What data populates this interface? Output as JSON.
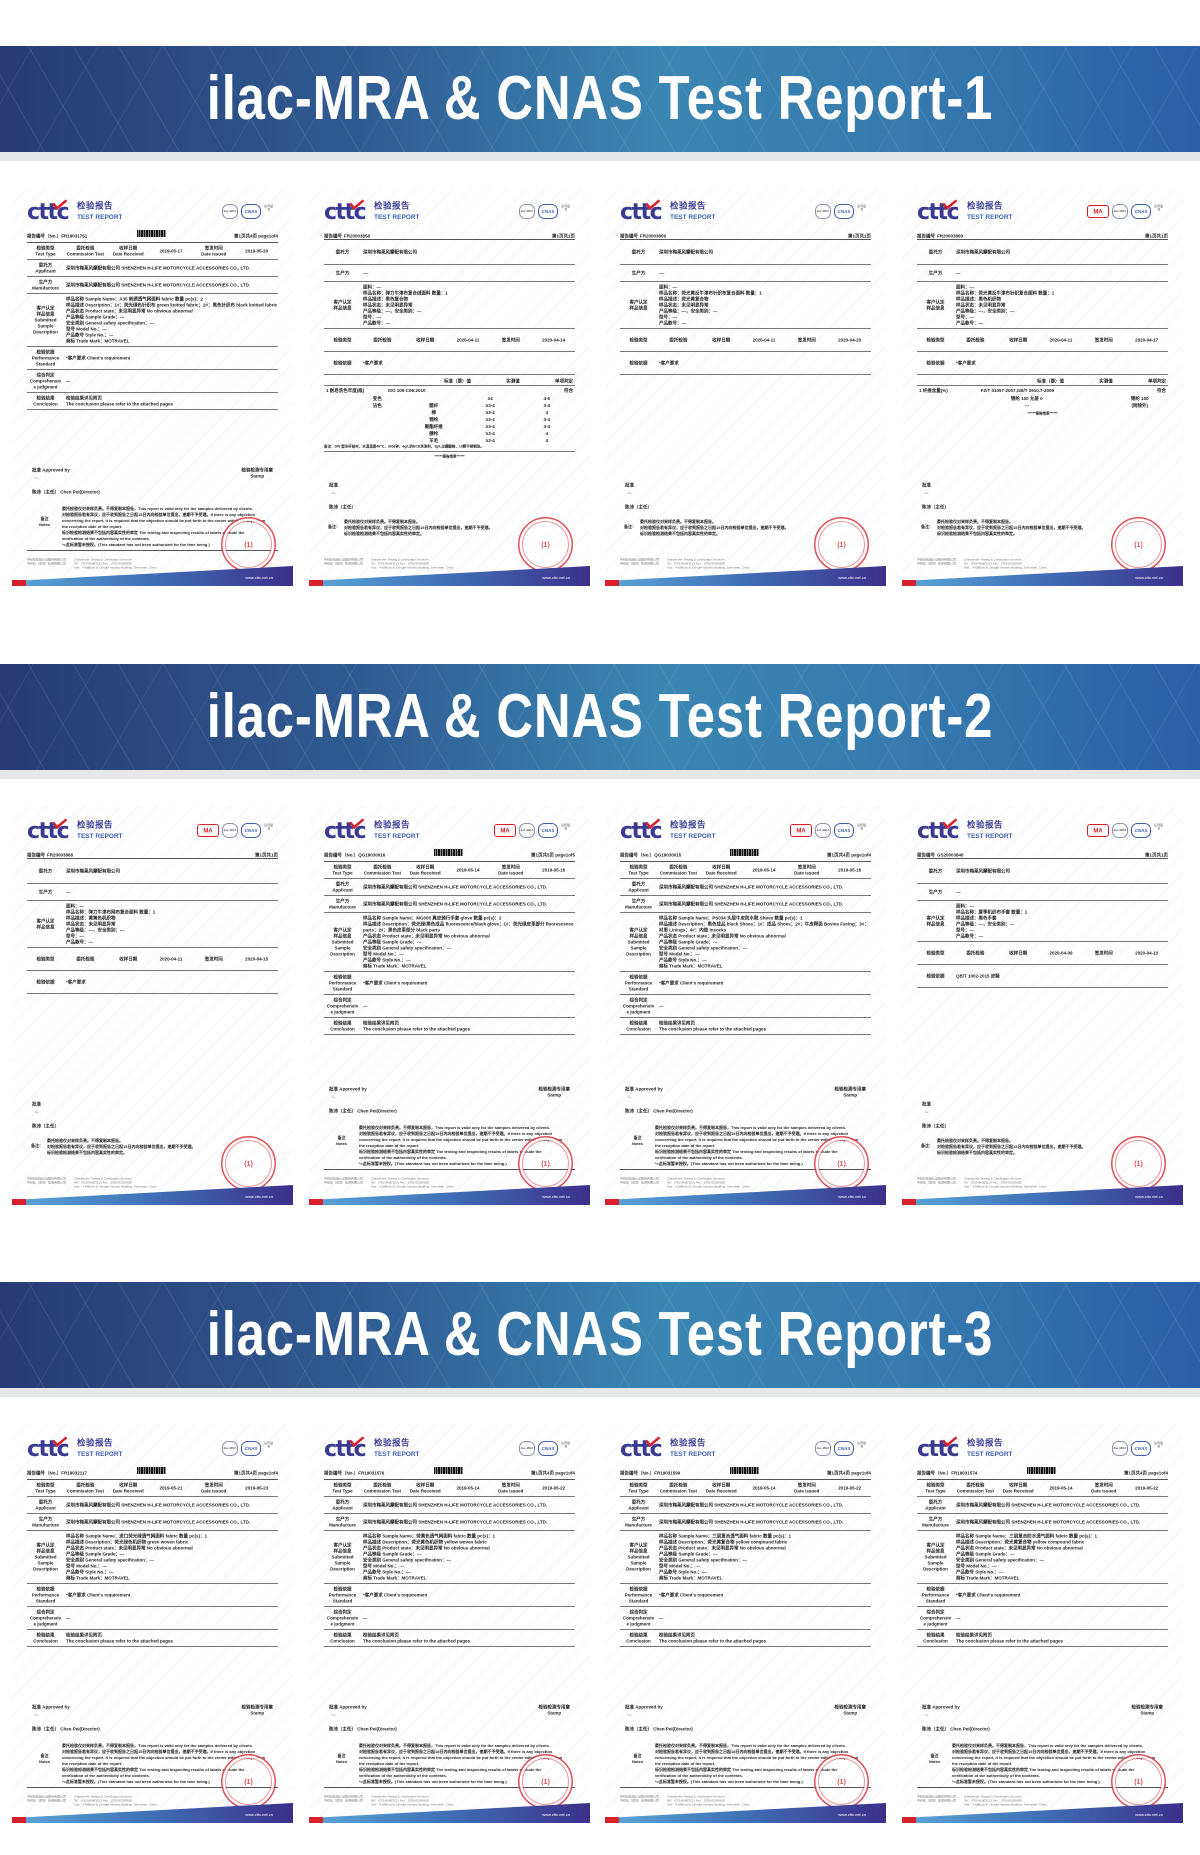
{
  "common": {
    "logo_mark": "cttc",
    "logo_cn": "检验报告",
    "logo_en": "TEST REPORT",
    "mark_ma": "MA",
    "mark_ilac": "ilac-MRA",
    "mark_cnas": "CNAS",
    "mark_txt": "认可证书",
    "full": {
      "no_label": "报告编号（No.）",
      "test_type_cn": "检验类型",
      "test_type_en": "Test Type",
      "commission_cn": "委托检验",
      "commission_en": "Commission Test",
      "received_cn": "收样日期",
      "received_en": "Date Received",
      "issued_cn": "签发时间",
      "issued_en": "Date issued",
      "applicant_cn": "委托方",
      "applicant_en": "Applicant",
      "manufacture_cn": "生产方",
      "manufacture_en": "Manufacture",
      "company": "深圳市梅莱风摩配有限公司 SHENZHEN H-LIFE MOTORCYCLE ACCESSORIES CO., LTD.",
      "sample_label": [
        "客户认定",
        "样品信息",
        "Submitted",
        "Sample",
        "Description"
      ],
      "sample_common": [
        "产品状态 Product state：未见明显异常 No obvious abnormal",
        "产品等级 Sample Grade：---",
        "安全类别 General safety specification：---",
        "型号 Model No.：---",
        "产品款号 Style No.：---",
        "商标 Trade Mark：MOTRAVEL"
      ],
      "standard_label": [
        "检验依据",
        "Performance",
        "Standard"
      ],
      "standard_value": "*客户要求 Client's requirement",
      "judgment_label": [
        "综合判定",
        "Comprehensiv",
        "e judgment"
      ],
      "judgment_value": "---",
      "conclusion_label": [
        "检验结果",
        "Conclusion"
      ],
      "conclusion_value": [
        "检验结果详见附页",
        "The conclusion please refer to the attached pages"
      ],
      "approved": "批准 Approved by",
      "stamp_label": [
        "检验检测专用章",
        "Stamp"
      ],
      "signer": "陈沛（主任） Chen Pei(Director)",
      "notes_label": [
        "备注",
        "Notes"
      ],
      "notes": [
        "委托检验仅对来样负责。不得复制本报告，This report is valid only for the samples delivered by clients.",
        "对检验报告若有异议，应于收到报告之日起15日内向检验单位提出，逾期不予受理。If there is any objection",
        "concerning the report, it is required that the objection should be put forth to the center within 15 days from",
        "the reception date of the report.",
        "标识检验检测结果不包括内容真实性的审定 The testing and inspecting results of labels exclude the",
        "verification of the authenticity of the contents.",
        "*=此标准暂未授权。(This standard has not been authorized for the time being.)"
      ]
    },
    "short": {
      "no_label": "报告编号",
      "applicant": "委托方",
      "manufacture": "生产方",
      "sample_label": [
        "客户认定",
        "样品信息"
      ],
      "test_type": "检验类型",
      "commission": "委托检验",
      "received": "收样日期",
      "issued": "签发时间",
      "standard": "检验依据",
      "standard_value": "*客户要求",
      "company": "深圳市梅莱风摩配有限公司",
      "table_head": [
        "标准（要）值",
        "实测值",
        "单项判定"
      ],
      "approved": "批准",
      "signer": "陈沛（主任）",
      "notes_label": "备注：",
      "notes": [
        "委托检验仅对来样负责。不得复制本报告。",
        "对检验报告若有异议，应于收到报告之日起15日内向检验单位提出，逾期不予受理。",
        "标识检验检测结果不包括内容真实性的审定。"
      ],
      "end_mark": "******报告结束******"
    },
    "stamp_text": "(1)",
    "footer": [
      [
        "中纺标检验认证股份有限公司",
        "中纺标（深圳）检测有限公司"
      ],
      [
        "Chinatextile Testing & Certification Services",
        "Tel：0755-86003213  Fax：0755-83299639",
        "Add：4-6/Block B, Dongfe Industry Building, Shenzhen, China"
      ]
    ],
    "website": "www.cttc.net.cn"
  },
  "rows": [
    {
      "title": "ilac-MRA & CNAS Test Report-1",
      "docs": [
        {
          "type": "full",
          "ma": false,
          "no": "FR19031751",
          "page": "第1页共4页 page1of4",
          "received": "2019-05-17",
          "issued": "2019-05-20",
          "sample": [
            "样品名称 Sample Name：A35 刺绣透气网面料 fabric  数量 pc(s)：2",
            "样品描述 Description：1#：荧光绿色针织布 green knitted fabric；2#：黑色针织布 black knitted fabric"
          ]
        },
        {
          "type": "short",
          "ma": false,
          "no": "FR20003858",
          "page": "第1页共1页",
          "received": "2020-04-11",
          "issued": "2020-04-14",
          "sample": [
            "面料：---",
            "样品名称：弹力牛津布复合绒面料   数量：1",
            "样品描述：黑色复合物",
            "样品状态：未见明显异常",
            "产品等级：---，安全类别：---",
            "型号：---",
            "产品款号：---"
          ],
          "test": {
            "item": "1   耐皂洗色牢度(级)",
            "method": "ISO 105-C06:2010",
            "verdict": "符合",
            "results": [
              [
                "变色",
                "",
                "≥4",
                "4-5"
              ],
              [
                "沾色",
                "醋纤",
                "≥3-4",
                "3-4"
              ],
              [
                "",
                "棉",
                "≥3-4",
                "4"
              ],
              [
                "",
                "锦纶",
                "≥3-4",
                "3-4"
              ],
              [
                "",
                "聚酯纤维",
                "≥3-4",
                "3-4"
              ],
              [
                "",
                "腈纶",
                "≥3-4",
                "4"
              ],
              [
                "",
                "羊毛",
                "≥3-4",
                "4"
              ]
            ],
            "note": "备注：DW 型多纤贴衬，水温温度40℃，30分钟，4g/L的ECE洗涤剂，1g/L过硼酸钠，10颗不锈钢珠。"
          }
        },
        {
          "type": "short",
          "ma": false,
          "no": "FR20003859",
          "page": "第1页共1页",
          "received": "2020-04-11",
          "issued": "2020-04-20",
          "sample": [
            "面料：---",
            "样品名称：荧光黄反牛津布针织布复合面料   数量：1",
            "样品描述：荧光黄复合物",
            "样品状态：未见明显异常",
            "产品等级：---，安全类别：---",
            "型号：---",
            "产品款号：---"
          ]
        },
        {
          "type": "short",
          "ma": true,
          "no": "FR20003860",
          "page": "第1页共1页",
          "received": "2020-04-11",
          "issued": "2020-04-17",
          "sample": [
            "面料：---",
            "样品名称：荧光黄反牛津布针织复合面料   数量：1",
            "样品描述：黑色机织物",
            "样品状态：未见明显异常",
            "产品等级：---，安全类别：---",
            "型号：---",
            "产品款号：---"
          ],
          "test": {
            "item": "1   纤维含量(%)",
            "method": "FZ/T 01057-2007,GB/T 2910.7-2009",
            "verdict": "符合",
            "results": [
              [
                "",
                "锦纶 100  允差 0",
                "",
                "锦纶 100"
              ],
              [
                "",
                "---",
                "",
                "(附除外)"
              ]
            ],
            "note": ""
          }
        }
      ]
    },
    {
      "title": "ilac-MRA & CNAS Test Report-2",
      "docs": [
        {
          "type": "short",
          "ma": true,
          "no": "FR20003868",
          "page": "第1页共1页",
          "received": "2020-04-11",
          "issued": "2020-04-15",
          "sample": [
            "面料：---",
            "样品名称：弹力牛津布网布复合面料   数量：1",
            "样品描述：黄黄色机织物",
            "样品状态：未见明显异常",
            "产品等级：---，安全类别：---",
            "型号：---",
            "产品款号：---"
          ]
        },
        {
          "type": "full",
          "ma": true,
          "no": "QG19030016",
          "page": "第1页共5页 page1of5",
          "received": "2019-05-14",
          "issued": "2019-05-16",
          "sample": [
            "样品名称 Sample Name：MG005 真皮骑行手套 glove  数量 pc(s)：2",
            "样品描述 Description：荧光绿/黑色成品 fluorescence/black glove；1#：荧光绿皮革部分 fluorescence parts；2#：黑色皮革部分 black parts"
          ]
        },
        {
          "type": "full",
          "ma": true,
          "no": "QG19030015",
          "page": "第1页共4页 page1of4",
          "received": "2019-05-14",
          "issued": "2019-05-16",
          "sample": [
            "样品名称 Sample Name：PS034 头层牛皮防水靴 Shoes  数量 pc(s)：1",
            "样品描述 Description：黑色成品 black Shoes；1#：成品 Shoes；2#：牛皮帮面 Bovine Facing；3#：衬里 Linings；4#：内垫 Insocks"
          ]
        },
        {
          "type": "short",
          "ma": true,
          "no": "GS20003846",
          "page": "第1页共1页",
          "received": "2020-04-09",
          "issued": "2020-04-13",
          "sample": [
            "面料：---",
            "样品名称：夏季机织布手套   数量：1",
            "样品描述：黑色手套",
            "产品等级：---，安全类别：---",
            "型号：---",
            "产品款号：---"
          ],
          "test": {
            "item": "",
            "method": "QB/T 1002-2015 皮鞋",
            "verdict": "",
            "results": [],
            "note": ""
          }
        }
      ]
    },
    {
      "title": "ilac-MRA & CNAS Test Report-3",
      "docs": [
        {
          "type": "full",
          "ma": false,
          "no": "FR19032117",
          "page": "第1页共4页 page1of4",
          "received": "2019-05-21",
          "issued": "2019-05-23",
          "sample": [
            "样品名称 Sample Name：进口荧光绿透气网面料 fabric  数量 pc(s)：1",
            "样品描述 Description：荧光绿色机织物 green woven fabric"
          ]
        },
        {
          "type": "full",
          "ma": false,
          "no": "FR19031576",
          "page": "第1页共4页 page1of4",
          "received": "2019-05-14",
          "issued": "2019-05-22",
          "sample": [
            "样品名称 Sample Name：荧黄色透气网面料 fabric  数量 pc(s)：1",
            "样品描述 Description：荧光黄色机织物 yellow woven fabric"
          ]
        },
        {
          "type": "full",
          "ma": false,
          "no": "FR19031599",
          "page": "第1页共4页 page1of4",
          "received": "2019-05-14",
          "issued": "2019-05-22",
          "sample": [
            "样品名称 Sample Name：三层复合透气面料 fabric  数量 pc(s)：1",
            "样品描述 Description：荧光黄复合物 yellow compound fabric"
          ]
        },
        {
          "type": "full",
          "ma": false,
          "no": "FR19031574",
          "page": "第1页共4页 page1of4",
          "received": "2019-05-14",
          "issued": "2019-05-22",
          "sample": [
            "样品名称 Sample Name：三层复合防水透气面料 fabric  数量 pc(s)：1",
            "样品描述 Description：荧光黄复合物 yellow compound fabric"
          ]
        }
      ]
    }
  ],
  "colors": {
    "brand": "#3b3a93",
    "accent_red": "#d8202a",
    "banner": "#2f6aa0",
    "stamp": "#d9363e"
  }
}
